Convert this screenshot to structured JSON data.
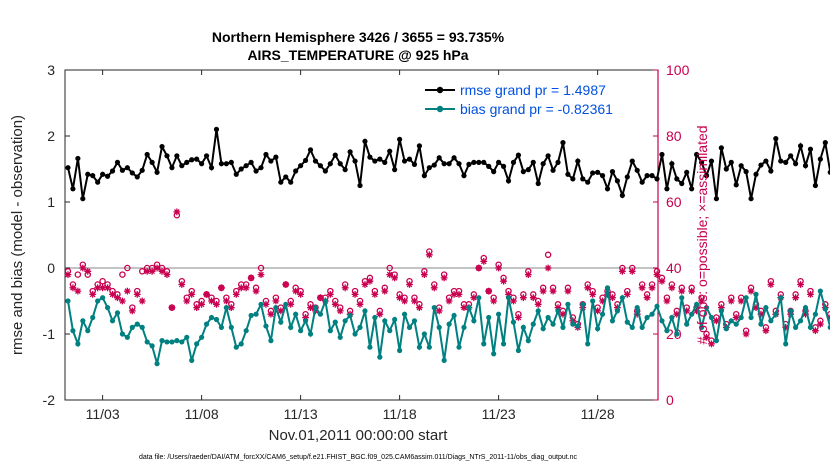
{
  "chart_data": {
    "type": "line",
    "title": "Northern Hemisphere 3426 / 3655 = 93.735%",
    "subtitle": "AIRS_TEMPERATURE @ 925 hPa",
    "xlabel": "Nov.01,2011 00:00:00 start",
    "ylabel": "rmse and bias (model - observation)",
    "ylabel_right": "# of obs: o=possible; ×=assimilated",
    "footer": "data file: /Users/raeder/DAI/ATM_forcXX/CAM6_setup/f.e21.FHIST_BGC.f09_025.CAM6assim.011/Diags_NTrS_2011-11/obs_diag_output.nc",
    "xlim": [
      0.6,
      30.55
    ],
    "ylim": [
      -2,
      3
    ],
    "ylim_right": [
      0,
      100
    ],
    "x_ticks": [
      2.5,
      7.5,
      12.5,
      17.5,
      22.5,
      27.5
    ],
    "x_tick_labels": [
      "11/03",
      "11/08",
      "11/13",
      "11/18",
      "11/23",
      "11/28"
    ],
    "y_ticks": [
      -2,
      -1,
      0,
      1,
      2,
      3
    ],
    "y_tick_labels": [
      "-2",
      "-1",
      "0",
      "1",
      "2",
      "3"
    ],
    "y_right_ticks": [
      0,
      20,
      40,
      60,
      80,
      100
    ],
    "y_right_tick_labels": [
      "0",
      "20",
      "40",
      "60",
      "80",
      "100"
    ],
    "x_start": 0.75,
    "x_step": 0.25,
    "legend_position": "top-right",
    "legend": [
      {
        "name": "rmse grand pr = 1.4987",
        "color": "#000000"
      },
      {
        "name": "bias grand pr = -0.82361",
        "color": "#008080"
      }
    ],
    "series": [
      {
        "name": "rmse",
        "color": "#000000",
        "axis": "left",
        "values": [
          1.52,
          1.2,
          1.66,
          1.05,
          1.42,
          1.4,
          1.3,
          1.42,
          1.39,
          1.47,
          1.6,
          1.48,
          1.52,
          1.44,
          1.38,
          1.48,
          1.72,
          1.6,
          1.45,
          1.84,
          1.7,
          1.52,
          1.7,
          1.55,
          1.6,
          1.64,
          1.65,
          1.58,
          1.7,
          1.52,
          2.1,
          1.58,
          1.58,
          1.6,
          1.42,
          1.5,
          1.55,
          1.6,
          1.47,
          1.52,
          1.72,
          1.62,
          1.68,
          1.3,
          1.38,
          1.3,
          1.47,
          1.55,
          1.63,
          1.79,
          1.62,
          1.55,
          1.47,
          1.58,
          1.71,
          1.58,
          1.49,
          1.76,
          1.62,
          1.25,
          1.92,
          1.68,
          1.62,
          1.65,
          1.6,
          1.77,
          1.49,
          1.95,
          1.62,
          1.65,
          1.57,
          1.85,
          1.4,
          1.52,
          1.56,
          1.67,
          1.58,
          1.58,
          1.67,
          1.58,
          1.4,
          1.57,
          1.6,
          1.6,
          1.6,
          1.54,
          1.46,
          1.6,
          1.54,
          1.32,
          1.6,
          1.71,
          1.46,
          1.49,
          1.6,
          1.28,
          1.58,
          1.7,
          1.48,
          1.6,
          1.9,
          1.42,
          1.35,
          1.62,
          1.35,
          1.3,
          1.44,
          1.45,
          1.4,
          1.2,
          1.46,
          1.32,
          1.1,
          1.38,
          1.62,
          1.48,
          1.3,
          1.4,
          1.4,
          1.35,
          1.72,
          1.2,
          1.58,
          1.35,
          1.28,
          1.45,
          1.2,
          1.72,
          1.6,
          1.4,
          1.62,
          1.05,
          1.82,
          1.5,
          1.6,
          1.26,
          1.55,
          1.46,
          1.05,
          1.42,
          1.56,
          1.62,
          1.47,
          1.96,
          1.62,
          1.6,
          1.7,
          1.58,
          1.85,
          1.55,
          1.8,
          1.25,
          1.65,
          1.9,
          1.45,
          1.3,
          1.45
        ]
      },
      {
        "name": "bias",
        "color": "#008080",
        "axis": "left",
        "values": [
          -0.5,
          -0.95,
          -1.15,
          -0.8,
          -0.95,
          -0.75,
          -0.5,
          -0.45,
          -0.6,
          -0.8,
          -0.68,
          -1.0,
          -1.05,
          -0.9,
          -0.85,
          -0.9,
          -1.12,
          -1.18,
          -1.45,
          -1.1,
          -1.12,
          -1.12,
          -1.1,
          -1.12,
          -1.05,
          -1.4,
          -1.15,
          -1.05,
          -0.85,
          -0.75,
          -0.78,
          -0.9,
          -0.6,
          -0.9,
          -1.2,
          -1.15,
          -0.95,
          -0.72,
          -0.7,
          -0.55,
          -0.88,
          -1.1,
          -0.6,
          -0.82,
          -0.55,
          -0.9,
          -0.7,
          -0.95,
          -0.8,
          -1.0,
          -0.6,
          -0.7,
          -0.5,
          -0.95,
          -0.82,
          -1.05,
          -0.8,
          -0.72,
          -1.0,
          -0.9,
          -0.65,
          -1.2,
          -0.75,
          -1.35,
          -0.8,
          -0.95,
          -0.78,
          -1.25,
          -0.7,
          -0.9,
          -0.8,
          -1.2,
          -1.0,
          -1.2,
          -0.6,
          -0.9,
          -1.4,
          -0.85,
          -0.72,
          -1.2,
          -0.9,
          -0.6,
          -0.8,
          -0.45,
          -1.15,
          -0.75,
          -1.3,
          -0.7,
          -1.15,
          -0.45,
          -0.82,
          -1.25,
          -0.9,
          -1.1,
          -0.85,
          -0.65,
          -0.92,
          -0.75,
          -0.85,
          -0.65,
          -0.9,
          -0.55,
          -0.85,
          -0.88,
          -0.55,
          -1.15,
          -0.5,
          -0.92,
          -0.7,
          -0.3,
          -0.8,
          -0.65,
          -0.45,
          -0.82,
          -0.9,
          -0.6,
          -0.9,
          -0.75,
          -0.7,
          -0.58,
          -0.8,
          -0.95,
          -0.75,
          -1.0,
          -0.45,
          -0.85,
          -0.7,
          -0.55,
          -0.9,
          -0.6,
          -0.75,
          -1.1,
          -0.65,
          -0.92,
          -0.8,
          -0.85,
          -0.75,
          -0.45,
          -0.75,
          -0.4,
          -0.85,
          -0.6,
          -0.8,
          -0.7,
          -0.45,
          -1.15,
          -0.65,
          -0.9,
          -0.8,
          -0.6,
          -0.9,
          -0.7,
          -0.35,
          -0.62,
          -0.9,
          -0.8,
          -0.85
        ]
      },
      {
        "name": "possible",
        "color": "#c8004f",
        "axis": "right",
        "marker": "o",
        "values": [
          39,
          35,
          38,
          41,
          38,
          33,
          35,
          36,
          35,
          33,
          32,
          38,
          40,
          28,
          33,
          39,
          40,
          40,
          41,
          40,
          39,
          28,
          56,
          36,
          31,
          33,
          29,
          30,
          32,
          31,
          30,
          34,
          31,
          29,
          33,
          35,
          35,
          37,
          34,
          40,
          30,
          27,
          31,
          28,
          35,
          30,
          34,
          33,
          26,
          29,
          28,
          31,
          31,
          33,
          30,
          28,
          35,
          27,
          33,
          30,
          36,
          37,
          33,
          27,
          34,
          40,
          38,
          32,
          31,
          36,
          31,
          29,
          39,
          45,
          35,
          28,
          38,
          31,
          33,
          33,
          29,
          29,
          32,
          40,
          43,
          33,
          31,
          41,
          37,
          33,
          31,
          26,
          32,
          39,
          32,
          30,
          34,
          44,
          34,
          29,
          27,
          34,
          25,
          23,
          29,
          35,
          33,
          28,
          31,
          33,
          32,
          29,
          40,
          33,
          40,
          27,
          35,
          32,
          35,
          39,
          37,
          31,
          35,
          27,
          34,
          28,
          34,
          28,
          31,
          20,
          18,
          25,
          29,
          23,
          31,
          26,
          31,
          21,
          34,
          29,
          27,
          22,
          36,
          27,
          32,
          23,
          27,
          32,
          36,
          27,
          33,
          22,
          24,
          29,
          26,
          0
        ]
      },
      {
        "name": "assimilated",
        "color": "#c8004f",
        "axis": "right",
        "marker": "*",
        "values": [
          38,
          34,
          33,
          40,
          39,
          32,
          34,
          34,
          34,
          32,
          31,
          30,
          33,
          27,
          32,
          30,
          39,
          39,
          40,
          39,
          38,
          28,
          57,
          35,
          30,
          32,
          28,
          29,
          32,
          30,
          29,
          34,
          30,
          28,
          32,
          34,
          34,
          37,
          33,
          38,
          29,
          26,
          30,
          27,
          35,
          29,
          33,
          32,
          25,
          28,
          27,
          31,
          30,
          32,
          29,
          27,
          34,
          26,
          32,
          29,
          35,
          36,
          32,
          26,
          33,
          38,
          37,
          31,
          30,
          35,
          30,
          28,
          38,
          44,
          34,
          27,
          37,
          30,
          32,
          32,
          28,
          28,
          31,
          40,
          42,
          33,
          30,
          40,
          36,
          32,
          30,
          25,
          31,
          38,
          31,
          29,
          33,
          40,
          33,
          28,
          26,
          33,
          24,
          22,
          28,
          34,
          32,
          27,
          30,
          32,
          31,
          28,
          39,
          32,
          39,
          26,
          34,
          31,
          34,
          38,
          36,
          30,
          34,
          26,
          33,
          27,
          33,
          27,
          30,
          19,
          17,
          24,
          28,
          22,
          30,
          25,
          30,
          20,
          33,
          28,
          26,
          21,
          35,
          26,
          31,
          22,
          26,
          31,
          35,
          26,
          32,
          21,
          23,
          28,
          25,
          0
        ]
      }
    ]
  }
}
